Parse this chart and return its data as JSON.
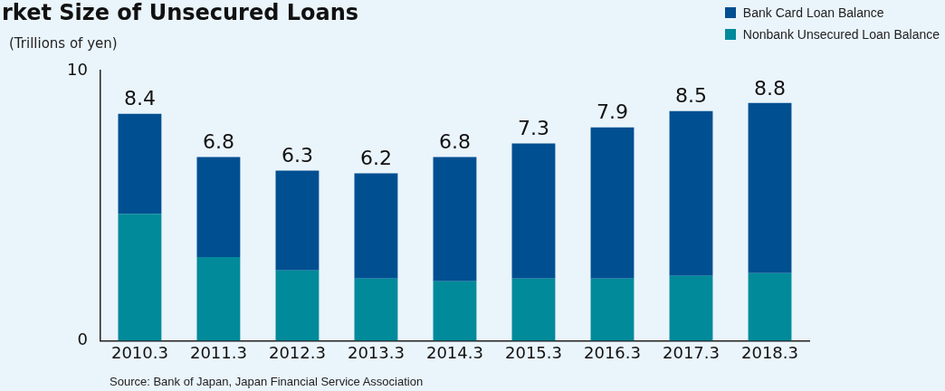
{
  "chart_data": {
    "type": "bar",
    "title": "rket Size of Unsecured Loans",
    "ylabel": "(Trillions of yen)",
    "categories": [
      "2010.3",
      "2011.3",
      "2012.3",
      "2013.3",
      "2014.3",
      "2015.3",
      "2016.3",
      "2017.3",
      "2018.3"
    ],
    "stacked": true,
    "series": [
      {
        "name": "Nonbank Unsecured Loan Balance",
        "color": "#008a9a",
        "values": [
          4.7,
          3.1,
          2.6,
          2.3,
          2.2,
          2.3,
          2.3,
          2.4,
          2.5
        ]
      },
      {
        "name": "Bank Card Loan Balance",
        "color": "#004f91",
        "values": [
          3.7,
          3.7,
          3.7,
          3.9,
          4.6,
          5.0,
          5.6,
          6.1,
          6.3
        ]
      }
    ],
    "totals": [
      "8.4",
      "6.8",
      "6.3",
      "6.2",
      "6.8",
      "7.3",
      "7.9",
      "8.5",
      "8.8"
    ],
    "ylim": [
      0,
      10
    ],
    "yticks": [
      0,
      10
    ],
    "grid": false,
    "legend": "top right",
    "annotations": [
      "Source: Bank of Japan, Japan Financial Service Association"
    ]
  }
}
